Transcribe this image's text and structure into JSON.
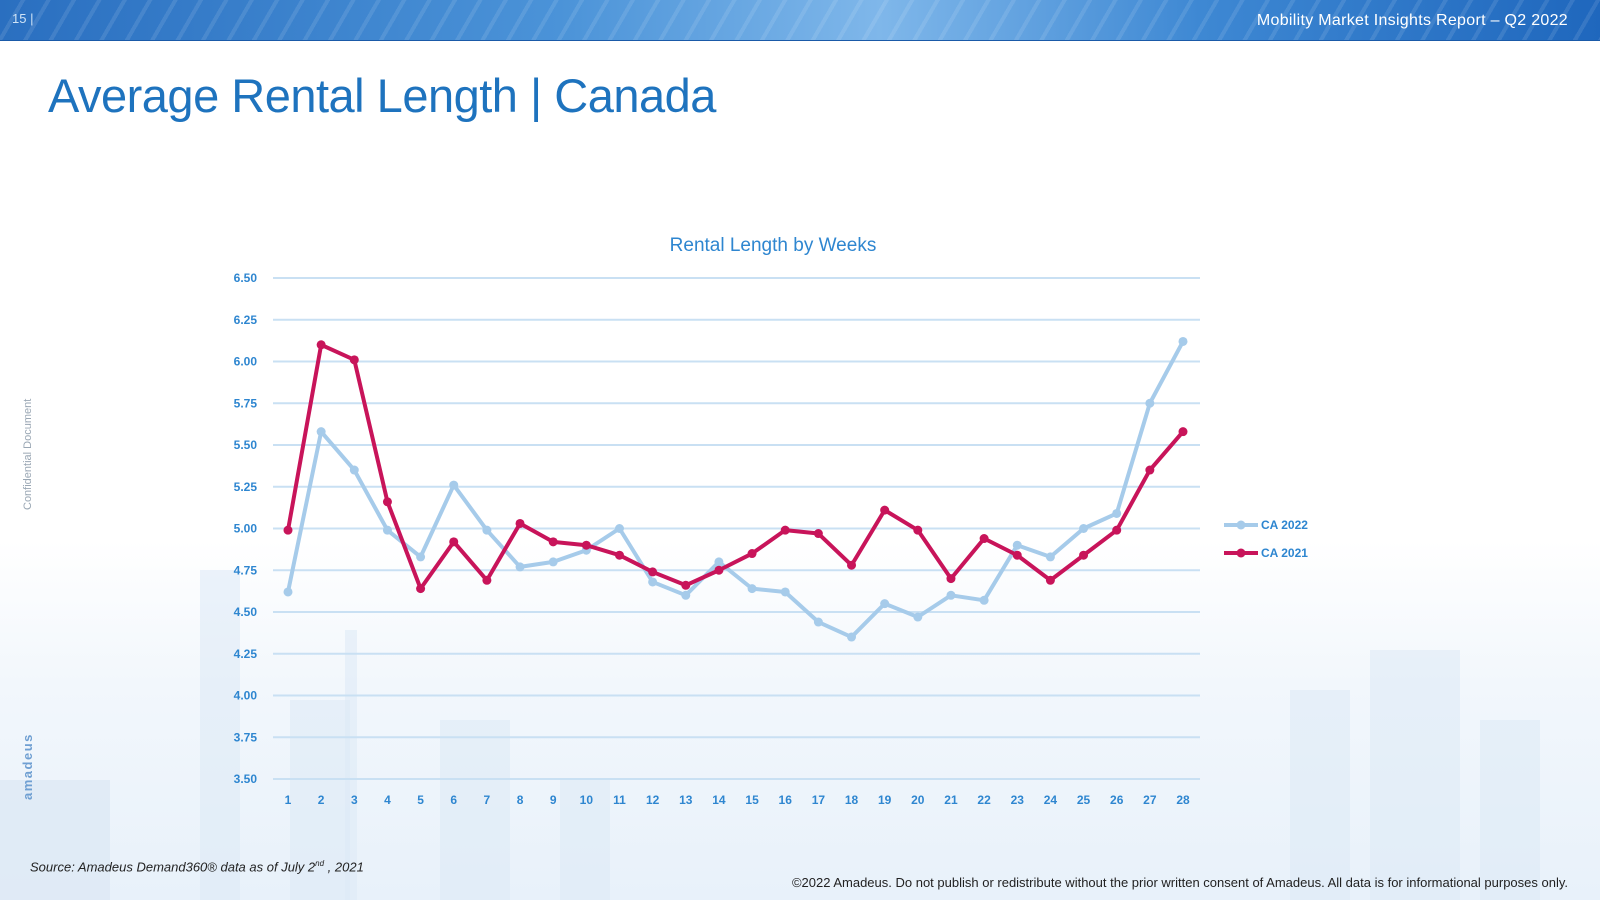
{
  "header": {
    "page_number": "15 |",
    "report_title": "Mobility Market Insights Report – Q2 2022"
  },
  "page_title": "Average Rental Length | Canada",
  "side_label": "Confidential Document",
  "brand": "amadeus",
  "footer": {
    "source_prefix": "Source: Amadeus Demand360® data as of July 2",
    "source_sup": "nd",
    "source_suffix": " , 2021",
    "copyright": "©2022 Amadeus. Do not publish or redistribute without the prior written consent of Amadeus. All data is for informational purposes only."
  },
  "chart_data": {
    "type": "line",
    "title": "Rental Length by Weeks",
    "xlabel": "",
    "ylabel": "",
    "categories": [
      "1",
      "2",
      "3",
      "4",
      "5",
      "6",
      "7",
      "8",
      "9",
      "10",
      "11",
      "12",
      "13",
      "14",
      "15",
      "16",
      "17",
      "18",
      "19",
      "20",
      "21",
      "22",
      "23",
      "24",
      "25",
      "26",
      "27",
      "28"
    ],
    "ylim": [
      3.5,
      6.5
    ],
    "yticks": [
      "3.50",
      "3.75",
      "4.00",
      "4.25",
      "4.50",
      "4.75",
      "5.00",
      "5.25",
      "5.50",
      "5.75",
      "6.00",
      "6.25",
      "6.50"
    ],
    "grid": true,
    "legend_position": "right",
    "series": [
      {
        "name": "CA 2022",
        "color": "#a6cbea",
        "values": [
          4.62,
          5.58,
          5.35,
          4.99,
          4.83,
          5.26,
          4.99,
          4.77,
          4.8,
          4.87,
          5.0,
          4.68,
          4.6,
          4.8,
          4.64,
          4.62,
          4.44,
          4.35,
          4.55,
          4.47,
          4.6,
          4.57,
          4.9,
          4.83,
          5.0,
          5.09,
          5.75,
          6.12
        ]
      },
      {
        "name": "CA 2021",
        "color": "#c8145a",
        "values": [
          4.99,
          6.1,
          6.01,
          5.16,
          4.64,
          4.92,
          4.69,
          5.03,
          4.92,
          4.9,
          4.84,
          4.74,
          4.66,
          4.75,
          4.85,
          4.99,
          4.97,
          4.78,
          5.11,
          4.99,
          4.7,
          4.94,
          4.84,
          4.69,
          4.84,
          4.99,
          5.35,
          5.58
        ]
      }
    ]
  }
}
